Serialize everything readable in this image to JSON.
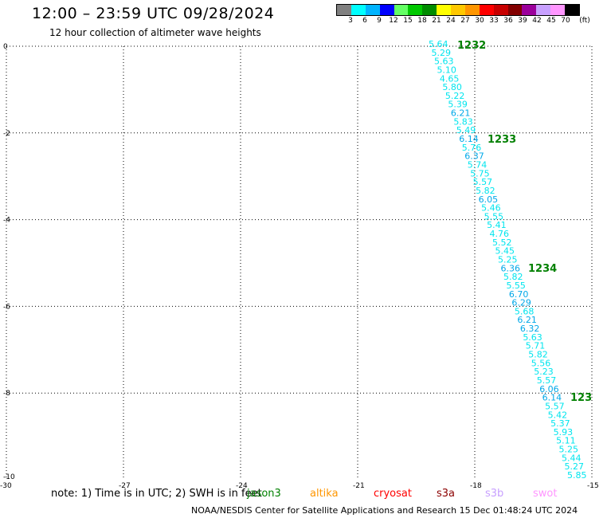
{
  "header": {
    "title": "12:00 – 23:59 UTC 09/28/2024",
    "subtitle": "12 hour collection of altimeter wave heights"
  },
  "legend": {
    "unit": "(ft)",
    "labels": [
      "3",
      "6",
      "9",
      "12",
      "15",
      "18",
      "21",
      "24",
      "27",
      "30",
      "33",
      "36",
      "39",
      "42",
      "45",
      "70"
    ],
    "colors": [
      "#808080",
      "#00ffff",
      "#00b4ff",
      "#0000ff",
      "#64ff64",
      "#00c800",
      "#008c00",
      "#ffff00",
      "#ffc800",
      "#ff9600",
      "#ff0000",
      "#c80000",
      "#820000",
      "#9b009b",
      "#c8a0ff",
      "#ff96ff",
      "#000000"
    ]
  },
  "axes": {
    "lon_ticks": [
      "-30",
      "-27",
      "-24",
      "-21",
      "-18",
      "-15"
    ],
    "lat_ticks": [
      "0",
      "-2",
      "-4",
      "-6",
      "-8",
      "-10"
    ]
  },
  "track_labels": [
    {
      "text": "1232",
      "color": "#008000"
    },
    {
      "text": "1233",
      "color": "#008000"
    },
    {
      "text": "1234",
      "color": "#008000"
    },
    {
      "text": "123",
      "color": "#008000"
    }
  ],
  "wave_heights": [
    {
      "v": "5.64",
      "c": "#00e5ee"
    },
    {
      "v": "5.29",
      "c": "#00e5ee"
    },
    {
      "v": "5.63",
      "c": "#00e5ee"
    },
    {
      "v": "5.10",
      "c": "#00e5ee"
    },
    {
      "v": "4.65",
      "c": "#00e5ee"
    },
    {
      "v": "5.80",
      "c": "#00e5ee"
    },
    {
      "v": "5.22",
      "c": "#00e5ee"
    },
    {
      "v": "5.39",
      "c": "#00e5ee"
    },
    {
      "v": "6.21",
      "c": "#00a8e8"
    },
    {
      "v": "5.83",
      "c": "#00e5ee"
    },
    {
      "v": "5.49",
      "c": "#00e5ee"
    },
    {
      "v": "6.14",
      "c": "#00a8e8"
    },
    {
      "v": "5.76",
      "c": "#00e5ee"
    },
    {
      "v": "6.37",
      "c": "#00a8e8"
    },
    {
      "v": "5.74",
      "c": "#00e5ee"
    },
    {
      "v": "5.75",
      "c": "#00e5ee"
    },
    {
      "v": "5.57",
      "c": "#00e5ee"
    },
    {
      "v": "5.82",
      "c": "#00e5ee"
    },
    {
      "v": "6.05",
      "c": "#00a8e8"
    },
    {
      "v": "5.46",
      "c": "#00e5ee"
    },
    {
      "v": "5.55",
      "c": "#00e5ee"
    },
    {
      "v": "5.41",
      "c": "#00e5ee"
    },
    {
      "v": "4.76",
      "c": "#00e5ee"
    },
    {
      "v": "5.52",
      "c": "#00e5ee"
    },
    {
      "v": "5.45",
      "c": "#00e5ee"
    },
    {
      "v": "5.25",
      "c": "#00e5ee"
    },
    {
      "v": "6.36",
      "c": "#00a8e8"
    },
    {
      "v": "5.82",
      "c": "#00e5ee"
    },
    {
      "v": "5.55",
      "c": "#00e5ee"
    },
    {
      "v": "6.70",
      "c": "#00a8e8"
    },
    {
      "v": "6.29",
      "c": "#00a8e8"
    },
    {
      "v": "5.68",
      "c": "#00e5ee"
    },
    {
      "v": "6.21",
      "c": "#00a8e8"
    },
    {
      "v": "6.32",
      "c": "#00a8e8"
    },
    {
      "v": "5.63",
      "c": "#00e5ee"
    },
    {
      "v": "5.71",
      "c": "#00e5ee"
    },
    {
      "v": "5.82",
      "c": "#00e5ee"
    },
    {
      "v": "5.56",
      "c": "#00e5ee"
    },
    {
      "v": "5.23",
      "c": "#00e5ee"
    },
    {
      "v": "5.57",
      "c": "#00e5ee"
    },
    {
      "v": "6.06",
      "c": "#00a8e8"
    },
    {
      "v": "6.14",
      "c": "#00a8e8"
    },
    {
      "v": "5.57",
      "c": "#00e5ee"
    },
    {
      "v": "5.42",
      "c": "#00e5ee"
    },
    {
      "v": "5.37",
      "c": "#00e5ee"
    },
    {
      "v": "5.93",
      "c": "#00e5ee"
    },
    {
      "v": "5.11",
      "c": "#00e5ee"
    },
    {
      "v": "5.25",
      "c": "#00e5ee"
    },
    {
      "v": "5.44",
      "c": "#00e5ee"
    },
    {
      "v": "5.27",
      "c": "#00e5ee"
    },
    {
      "v": "5.85",
      "c": "#00e5ee"
    }
  ],
  "note": "note: 1) Time is in UTC; 2) SWH is in feet",
  "satellites": [
    {
      "name": "jason3",
      "color": "#008000"
    },
    {
      "name": "altika",
      "color": "#ff9600"
    },
    {
      "name": "cryosat",
      "color": "#ff0000"
    },
    {
      "name": "s3a",
      "color": "#8b0000"
    },
    {
      "name": "s3b",
      "color": "#c8a0ff"
    },
    {
      "name": "swot",
      "color": "#ff96ff"
    }
  ],
  "footer": "NOAA/NESDIS Center for Satellite Applications and Research   15 Dec 01:48:24 UTC 2024"
}
